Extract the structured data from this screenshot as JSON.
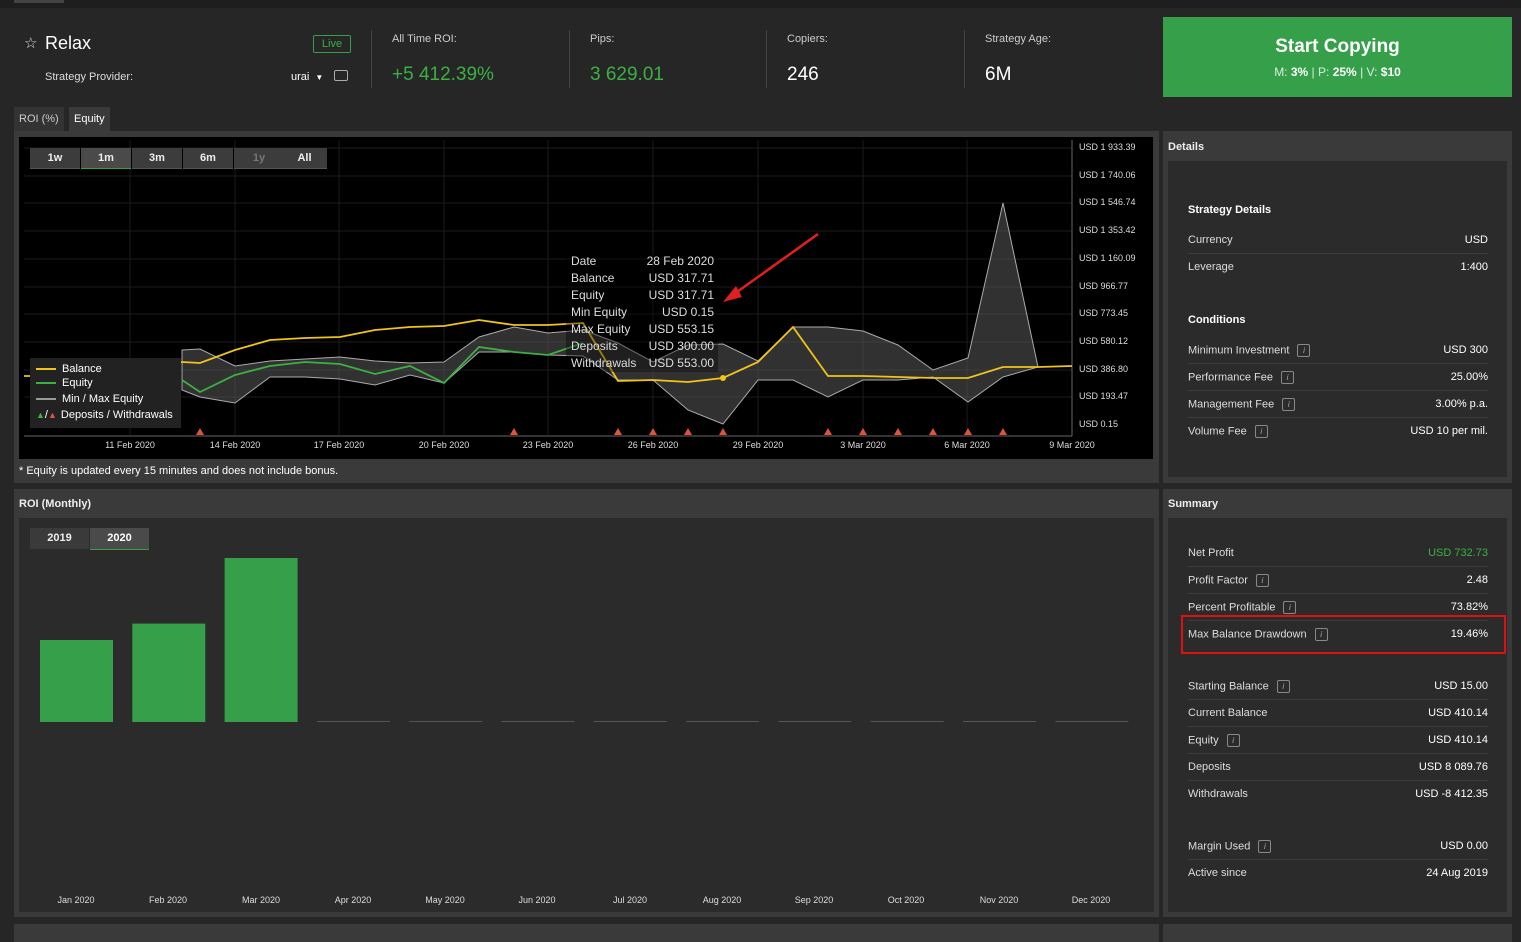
{
  "header": {
    "strategy_name": "Relax",
    "live_badge": "Live",
    "provider_label": "Strategy Provider:",
    "provider_name": "urai",
    "stats": [
      {
        "label": "All Time ROI:",
        "value": "+5 412.39%"
      },
      {
        "label": "Pips:",
        "value": "3 629.01"
      },
      {
        "label": "Copiers:",
        "value": "246"
      },
      {
        "label": "Strategy Age:",
        "value": "6M"
      }
    ],
    "cta": {
      "label": "Start Copying",
      "m_label": "M:",
      "m_value": "3%",
      "p_label": "P:",
      "p_value": "25%",
      "v_label": "V:",
      "v_value": "$10"
    }
  },
  "tabs": [
    "ROI (%)",
    "Equity"
  ],
  "range_buttons": [
    "1w",
    "1m",
    "3m",
    "6m",
    "1y",
    "All"
  ],
  "equity_chart": {
    "y_ticks": [
      "USD 1 933.39",
      "USD 1 740.06",
      "USD 1 546.74",
      "USD 1 353.42",
      "USD 1 160.09",
      "USD 966.77",
      "USD 773.45",
      "USD 580.12",
      "USD 386.80",
      "USD 193.47",
      "USD 0.15"
    ],
    "x_ticks": [
      "11 Feb 2020",
      "14 Feb 2020",
      "17 Feb 2020",
      "20 Feb 2020",
      "23 Feb 2020",
      "26 Feb 2020",
      "29 Feb 2020",
      "3 Mar 2020",
      "6 Mar 2020",
      "9 Mar 2020"
    ],
    "legend": [
      "Balance",
      "Equity",
      "Min / Max Equity",
      "Deposits / Withdrawals"
    ],
    "legend_slash": "/",
    "tooltip": {
      "keys": [
        "Date",
        "Balance",
        "Equity",
        "Min Equity",
        "Max Equity",
        "Deposits",
        "Withdrawals"
      ],
      "values": [
        "28 Feb 2020",
        "USD 317.71",
        "USD 317.71",
        "USD 0.15",
        "USD 553.15",
        "USD 300.00",
        "USD 553.00"
      ]
    },
    "note": "* Equity is updated every 15 minutes and does not include bonus.",
    "colors": {
      "balance": "#f0c419",
      "equity": "#3cb043",
      "minmax": "#999999",
      "deposit": "#3cb043",
      "withdrawal": "#e0533a"
    }
  },
  "roi_monthly": {
    "title": "ROI (Monthly)",
    "years": [
      "2019",
      "2020"
    ],
    "months": [
      "Jan 2020",
      "Feb 2020",
      "Mar 2020",
      "Apr 2020",
      "May 2020",
      "Jun 2020",
      "Jul 2020",
      "Aug 2020",
      "Sep 2020",
      "Oct 2020",
      "Nov 2020",
      "Dec 2020"
    ],
    "values": [
      50,
      60,
      100,
      0,
      0,
      0,
      0,
      0,
      0,
      0,
      0,
      0
    ]
  },
  "details": {
    "title": "Details",
    "strategy_details_title": "Strategy Details",
    "strategy_rows": [
      {
        "label": "Currency",
        "value": "USD"
      },
      {
        "label": "Leverage",
        "value": "1:400"
      }
    ],
    "conditions_title": "Conditions",
    "condition_rows": [
      {
        "label": "Minimum Investment",
        "value": "USD 300"
      },
      {
        "label": "Performance Fee",
        "value": "25.00%"
      },
      {
        "label": "Management Fee",
        "value": "3.00% p.a."
      },
      {
        "label": "Volume Fee",
        "value": "USD 10 per mil."
      }
    ]
  },
  "summary": {
    "title": "Summary",
    "rows": [
      {
        "label": "Net Profit",
        "value": "USD 732.73"
      },
      {
        "label": "Profit Factor",
        "value": "2.48"
      },
      {
        "label": "Percent Profitable",
        "value": "73.82%"
      },
      {
        "label": "Max Balance Drawdown",
        "value": "19.46%"
      },
      {
        "label": "Starting Balance",
        "value": "USD 15.00"
      },
      {
        "label": "Current Balance",
        "value": "USD 410.14"
      },
      {
        "label": "Equity",
        "value": "USD 410.14"
      },
      {
        "label": "Deposits",
        "value": "USD 8 089.76"
      },
      {
        "label": "Withdrawals",
        "value": "USD -8 412.35"
      },
      {
        "label": "Margin Used",
        "value": "USD 0.00"
      },
      {
        "label": "Active since",
        "value": "24 Aug 2019"
      }
    ],
    "info_glyph": "i"
  }
}
